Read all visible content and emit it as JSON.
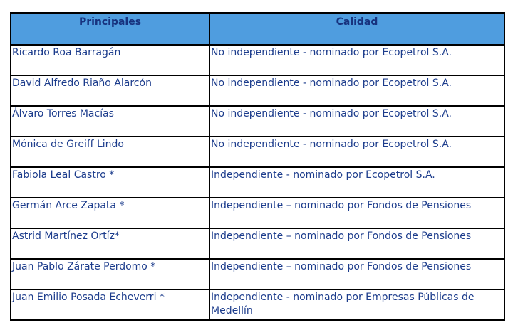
{
  "table": {
    "headers": [
      "Principales",
      "Calidad"
    ],
    "rows": [
      {
        "name": "Ricardo Roa Barragán",
        "quality": "No independiente - nominado por Ecopetrol S.A."
      },
      {
        "name": "David Alfredo Riaño Alarcón",
        "quality": "No independiente - nominado por Ecopetrol S.A."
      },
      {
        "name": "Álvaro Torres Macías",
        "quality": "No independiente - nominado por Ecopetrol S.A."
      },
      {
        "name": "Mónica de Greiff Lindo",
        "quality": "No independiente - nominado por Ecopetrol S.A."
      },
      {
        "name": "Fabiola Leal Castro *",
        "quality": "Independiente - nominado por Ecopetrol S.A."
      },
      {
        "name": "Germán Arce Zapata *",
        "quality": "Independiente – nominado por Fondos de Pensiones"
      },
      {
        "name": "Astrid Martínez Ortíz*",
        "quality": "Independiente – nominado por Fondos de Pensiones"
      },
      {
        "name": "Juan Pablo Zárate Perdomo *",
        "quality": "Independiente – nominado por Fondos de Pensiones"
      },
      {
        "name": "Juan Emilio Posada Echeverri *",
        "quality": "Independiente - nominado por Empresas Públicas de Medellín"
      }
    ]
  },
  "colors": {
    "header_bg": "#4f9ddf",
    "text": "#1c3c8c"
  }
}
